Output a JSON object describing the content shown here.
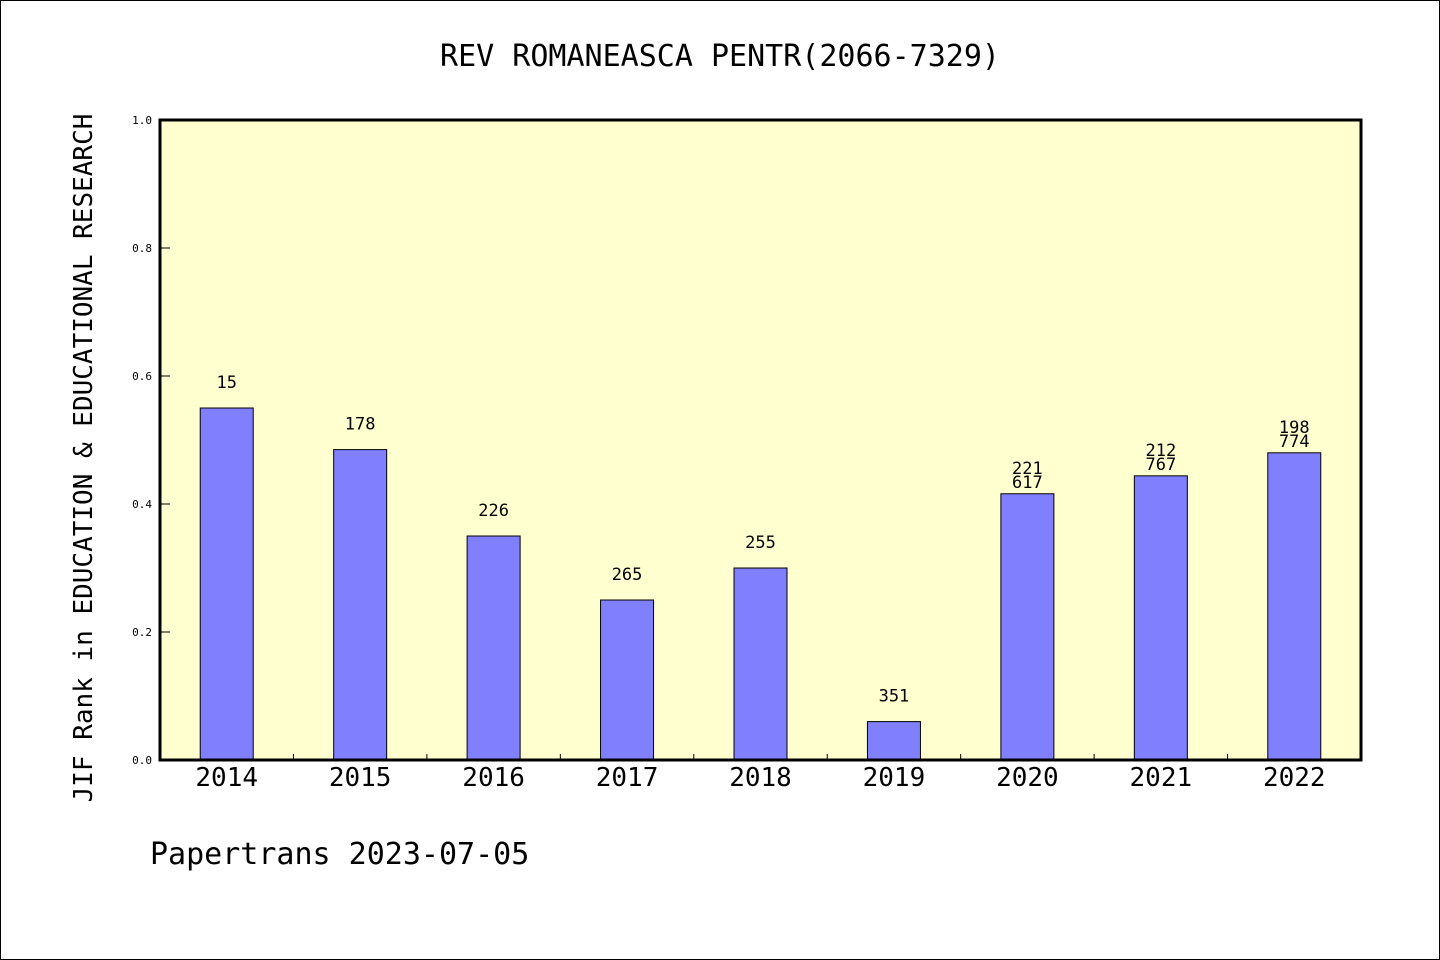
{
  "chart_data": {
    "type": "bar",
    "title": "REV ROMANEASCA PENTR(2066-7329)",
    "xlabel": "",
    "ylabel": "JIF Rank in EDUCATION & EDUCATIONAL RESEARCH",
    "ylim": [
      0.0,
      1.0
    ],
    "yticks": [
      "0.0",
      "0.2",
      "0.4",
      "0.6",
      "0.8",
      "1.0"
    ],
    "ytick_values": [
      0.0,
      0.2,
      0.4,
      0.6,
      0.8,
      1.0
    ],
    "categories": [
      "2014",
      "2015",
      "2016",
      "2017",
      "2018",
      "2019",
      "2020",
      "2021",
      "2022"
    ],
    "values": [
      0.55,
      0.485,
      0.35,
      0.25,
      0.3,
      0.06,
      0.416,
      0.444,
      0.48
    ],
    "bar_labels": [
      [
        "15"
      ],
      [
        "178"
      ],
      [
        "226"
      ],
      [
        "265"
      ],
      [
        "255"
      ],
      [
        "351"
      ],
      [
        "221",
        "617"
      ],
      [
        "212",
        "767"
      ],
      [
        "198",
        "774"
      ]
    ],
    "plot_background": "#ffffd0",
    "bar_color": "#8080ff",
    "grid": false,
    "legend": "none"
  },
  "footer": {
    "text": "Papertrans 2023-07-05"
  }
}
